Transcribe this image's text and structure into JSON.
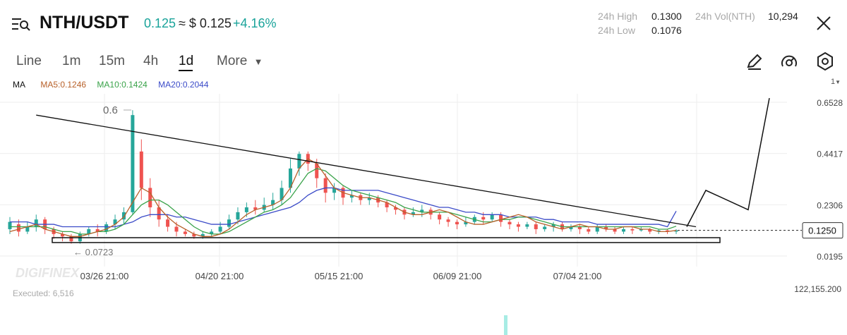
{
  "header": {
    "pair": "NTH/USDT",
    "price": "0.125",
    "approx_price": "≈ $ 0.125",
    "change": "+4.16%",
    "stats": {
      "high_label": "24h High",
      "high_value": "0.1300",
      "low_label": "24h Low",
      "low_value": "0.1076",
      "vol_label": "24h Vol(NTH)",
      "vol_value": "10,294"
    }
  },
  "timeframes": {
    "tabs": [
      "Line",
      "1m",
      "15m",
      "4h",
      "1d"
    ],
    "active": "1d",
    "more_label": "More"
  },
  "indicators": {
    "ma_label": "MA",
    "ma5": "MA5:0.1246",
    "ma10": "MA10:0.1424",
    "ma20": "MA20:0.2044"
  },
  "toolbar": {
    "scale_label": "1"
  },
  "colors": {
    "up": "#26a69a",
    "down": "#ef5350",
    "ma5": "#b8612a",
    "ma10": "#3aa34a",
    "ma20": "#3b4bc8",
    "accent": "#1aa39a"
  },
  "chart_data": {
    "type": "candlestick",
    "y_ticks": [
      "0.6528",
      "0.4417",
      "0.2306",
      "0.0195"
    ],
    "x_ticks": [
      "03/26 21:00",
      "04/20 21:00",
      "05/15 21:00",
      "06/09 21:00",
      "07/04 21:00"
    ],
    "ylim": [
      0.0195,
      0.6528
    ],
    "current_price_label": "0.1250",
    "current_price": 0.125,
    "annotations": {
      "high_marker": "0.6",
      "low_marker": "0.0723"
    },
    "volume_max_label": "122,155.200",
    "executed_label": "Executed: 6,516",
    "watermark": "DIGIFINEX",
    "ma5": [
      0.12,
      0.13,
      0.14,
      0.15,
      0.13,
      0.12,
      0.11,
      0.1,
      0.1,
      0.11,
      0.12,
      0.13,
      0.15,
      0.18,
      0.24,
      0.3,
      0.28,
      0.22,
      0.18,
      0.15,
      0.13,
      0.11,
      0.1,
      0.1,
      0.11,
      0.13,
      0.16,
      0.19,
      0.21,
      0.22,
      0.23,
      0.25,
      0.3,
      0.38,
      0.42,
      0.4,
      0.35,
      0.3,
      0.28,
      0.27,
      0.26,
      0.26,
      0.25,
      0.24,
      0.22,
      0.2,
      0.19,
      0.19,
      0.2,
      0.21,
      0.2,
      0.18,
      0.16,
      0.15,
      0.15,
      0.16,
      0.17,
      0.18,
      0.19,
      0.18,
      0.16,
      0.15,
      0.14,
      0.13,
      0.14,
      0.15,
      0.14,
      0.14,
      0.13,
      0.13,
      0.14,
      0.14,
      0.13,
      0.13,
      0.12,
      0.12,
      0.125
    ],
    "ma10": [
      0.14,
      0.14,
      0.14,
      0.14,
      0.14,
      0.13,
      0.12,
      0.12,
      0.11,
      0.11,
      0.12,
      0.12,
      0.13,
      0.15,
      0.19,
      0.23,
      0.25,
      0.25,
      0.23,
      0.2,
      0.17,
      0.14,
      0.12,
      0.11,
      0.11,
      0.12,
      0.14,
      0.16,
      0.18,
      0.2,
      0.21,
      0.23,
      0.26,
      0.31,
      0.36,
      0.38,
      0.37,
      0.34,
      0.31,
      0.29,
      0.28,
      0.27,
      0.26,
      0.25,
      0.24,
      0.22,
      0.21,
      0.2,
      0.2,
      0.2,
      0.2,
      0.19,
      0.18,
      0.17,
      0.16,
      0.16,
      0.17,
      0.17,
      0.18,
      0.18,
      0.17,
      0.16,
      0.15,
      0.14,
      0.14,
      0.14,
      0.14,
      0.14,
      0.14,
      0.14,
      0.14,
      0.14,
      0.14,
      0.14,
      0.13,
      0.13,
      0.1424
    ],
    "ma20": [
      0.16,
      0.16,
      0.16,
      0.15,
      0.15,
      0.15,
      0.14,
      0.14,
      0.14,
      0.14,
      0.14,
      0.14,
      0.14,
      0.15,
      0.16,
      0.18,
      0.19,
      0.19,
      0.19,
      0.18,
      0.18,
      0.17,
      0.16,
      0.15,
      0.15,
      0.15,
      0.16,
      0.17,
      0.18,
      0.19,
      0.2,
      0.21,
      0.22,
      0.24,
      0.27,
      0.29,
      0.3,
      0.3,
      0.29,
      0.29,
      0.29,
      0.29,
      0.29,
      0.28,
      0.27,
      0.26,
      0.25,
      0.24,
      0.23,
      0.22,
      0.22,
      0.21,
      0.2,
      0.2,
      0.19,
      0.19,
      0.19,
      0.18,
      0.18,
      0.18,
      0.18,
      0.17,
      0.17,
      0.16,
      0.16,
      0.16,
      0.16,
      0.15,
      0.15,
      0.15,
      0.15,
      0.15,
      0.15,
      0.15,
      0.15,
      0.14,
      0.2044
    ],
    "candles": [
      [
        0.13,
        0.16,
        0.11,
        0.18
      ],
      [
        0.15,
        0.12,
        0.1,
        0.17
      ],
      [
        0.12,
        0.14,
        0.11,
        0.16
      ],
      [
        0.14,
        0.17,
        0.12,
        0.19
      ],
      [
        0.17,
        0.13,
        0.11,
        0.18
      ],
      [
        0.13,
        0.11,
        0.09,
        0.14
      ],
      [
        0.11,
        0.1,
        0.08,
        0.12
      ],
      [
        0.1,
        0.08,
        0.07,
        0.11
      ],
      [
        0.08,
        0.11,
        0.07,
        0.12
      ],
      [
        0.11,
        0.13,
        0.1,
        0.14
      ],
      [
        0.13,
        0.12,
        0.1,
        0.15
      ],
      [
        0.12,
        0.15,
        0.11,
        0.16
      ],
      [
        0.15,
        0.17,
        0.13,
        0.19
      ],
      [
        0.17,
        0.2,
        0.15,
        0.22
      ],
      [
        0.2,
        0.6,
        0.19,
        0.62
      ],
      [
        0.45,
        0.3,
        0.25,
        0.5
      ],
      [
        0.3,
        0.22,
        0.18,
        0.34
      ],
      [
        0.22,
        0.17,
        0.14,
        0.25
      ],
      [
        0.17,
        0.14,
        0.12,
        0.19
      ],
      [
        0.14,
        0.12,
        0.1,
        0.16
      ],
      [
        0.12,
        0.11,
        0.1,
        0.13
      ],
      [
        0.11,
        0.1,
        0.09,
        0.12
      ],
      [
        0.1,
        0.11,
        0.09,
        0.12
      ],
      [
        0.11,
        0.12,
        0.1,
        0.13
      ],
      [
        0.12,
        0.14,
        0.11,
        0.16
      ],
      [
        0.14,
        0.17,
        0.13,
        0.19
      ],
      [
        0.17,
        0.2,
        0.15,
        0.22
      ],
      [
        0.2,
        0.22,
        0.18,
        0.24
      ],
      [
        0.22,
        0.21,
        0.19,
        0.25
      ],
      [
        0.21,
        0.23,
        0.2,
        0.26
      ],
      [
        0.23,
        0.25,
        0.21,
        0.28
      ],
      [
        0.25,
        0.3,
        0.23,
        0.33
      ],
      [
        0.3,
        0.38,
        0.28,
        0.42
      ],
      [
        0.38,
        0.44,
        0.35,
        0.45
      ],
      [
        0.44,
        0.4,
        0.37,
        0.45
      ],
      [
        0.4,
        0.34,
        0.3,
        0.42
      ],
      [
        0.34,
        0.28,
        0.24,
        0.36
      ],
      [
        0.28,
        0.3,
        0.25,
        0.32
      ],
      [
        0.3,
        0.26,
        0.23,
        0.31
      ],
      [
        0.26,
        0.27,
        0.24,
        0.29
      ],
      [
        0.27,
        0.25,
        0.23,
        0.28
      ],
      [
        0.25,
        0.26,
        0.23,
        0.28
      ],
      [
        0.26,
        0.24,
        0.22,
        0.27
      ],
      [
        0.24,
        0.22,
        0.2,
        0.25
      ],
      [
        0.22,
        0.21,
        0.19,
        0.23
      ],
      [
        0.21,
        0.19,
        0.17,
        0.22
      ],
      [
        0.19,
        0.2,
        0.18,
        0.22
      ],
      [
        0.2,
        0.21,
        0.18,
        0.23
      ],
      [
        0.21,
        0.19,
        0.17,
        0.22
      ],
      [
        0.19,
        0.17,
        0.15,
        0.2
      ],
      [
        0.17,
        0.16,
        0.14,
        0.18
      ],
      [
        0.16,
        0.15,
        0.13,
        0.17
      ],
      [
        0.15,
        0.16,
        0.14,
        0.18
      ],
      [
        0.16,
        0.18,
        0.15,
        0.19
      ],
      [
        0.18,
        0.17,
        0.15,
        0.2
      ],
      [
        0.17,
        0.19,
        0.16,
        0.2
      ],
      [
        0.19,
        0.16,
        0.14,
        0.2
      ],
      [
        0.16,
        0.15,
        0.13,
        0.17
      ],
      [
        0.15,
        0.14,
        0.12,
        0.16
      ],
      [
        0.14,
        0.15,
        0.13,
        0.16
      ],
      [
        0.15,
        0.13,
        0.11,
        0.16
      ],
      [
        0.13,
        0.14,
        0.12,
        0.15
      ],
      [
        0.14,
        0.15,
        0.12,
        0.16
      ],
      [
        0.15,
        0.13,
        0.12,
        0.16
      ],
      [
        0.13,
        0.14,
        0.12,
        0.15
      ],
      [
        0.14,
        0.13,
        0.11,
        0.15
      ],
      [
        0.13,
        0.12,
        0.11,
        0.14
      ],
      [
        0.12,
        0.14,
        0.11,
        0.15
      ],
      [
        0.14,
        0.13,
        0.12,
        0.15
      ],
      [
        0.13,
        0.12,
        0.11,
        0.14
      ],
      [
        0.12,
        0.13,
        0.11,
        0.14
      ],
      [
        0.13,
        0.125,
        0.11,
        0.14
      ],
      [
        0.125,
        0.13,
        0.12,
        0.14
      ],
      [
        0.13,
        0.12,
        0.11,
        0.135
      ],
      [
        0.12,
        0.125,
        0.11,
        0.13
      ],
      [
        0.125,
        0.12,
        0.11,
        0.13
      ],
      [
        0.12,
        0.125,
        0.11,
        0.13
      ]
    ],
    "trendlines": {
      "descending_resistance": [
        [
          0.6,
          0.58
        ],
        [
          0.11,
          0.14
        ]
      ],
      "support_box": [
        0.075,
        0.095
      ],
      "projection": [
        0.14,
        0.29,
        0.21,
        0.67
      ]
    }
  }
}
